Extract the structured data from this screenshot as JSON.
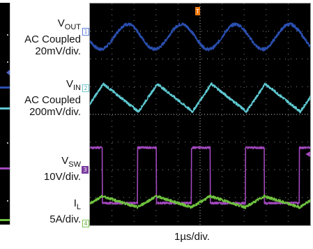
{
  "chart_data": {
    "type": "line",
    "xlabel": "1µs/div.",
    "x_divisions": 10,
    "y_divisions": 8,
    "grid": true,
    "series": [
      {
        "channel": 1,
        "name_main": "V",
        "name_sub": "OUT",
        "coupling": "AC Coupled",
        "scale": "20mV/div.",
        "color": "#2a4fb0",
        "shape": "sine",
        "offset_div": 6.8,
        "amp_div": 0.45,
        "period_div": 2.45,
        "phase": 0.55,
        "noise": 0.06
      },
      {
        "channel": 2,
        "name_main": "V",
        "name_sub": "IN",
        "coupling": "AC Coupled",
        "scale": "200mV/div.",
        "color": "#5ec9d1",
        "shape": "sawtooth",
        "offset_div": 4.6,
        "amp_div": 0.5,
        "period_div": 2.45,
        "phase": 0.1,
        "noise": 0.05
      },
      {
        "channel": 3,
        "name_main": "V",
        "name_sub": "SW",
        "coupling": "",
        "scale": "10V/div.",
        "color": "#a248bd",
        "shape": "square",
        "offset_div": 1.8,
        "amp_div": 1.0,
        "period_div": 2.45,
        "duty": 0.35,
        "phase": 0.12,
        "noise": 0.04
      },
      {
        "channel": 4,
        "name_main": "I",
        "name_sub": "L",
        "coupling": "",
        "scale": "5A/div.",
        "color": "#6fc23f",
        "shape": "triangle",
        "offset_div": 0.85,
        "amp_div": 0.2,
        "period_div": 2.45,
        "duty": 0.35,
        "phase": 0.12,
        "noise": 0.05
      }
    ]
  },
  "markers": {
    "ch1": "1",
    "ch2": "2",
    "ch3": "3",
    "ch4": "4"
  },
  "trigger_marker": "T"
}
